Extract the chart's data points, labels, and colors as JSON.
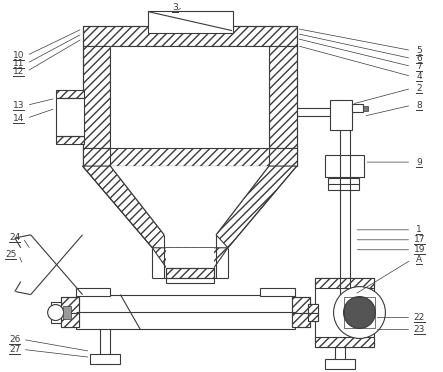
{
  "bg_color": "#ffffff",
  "lc": "#3a3a3a",
  "lw": 0.8
}
